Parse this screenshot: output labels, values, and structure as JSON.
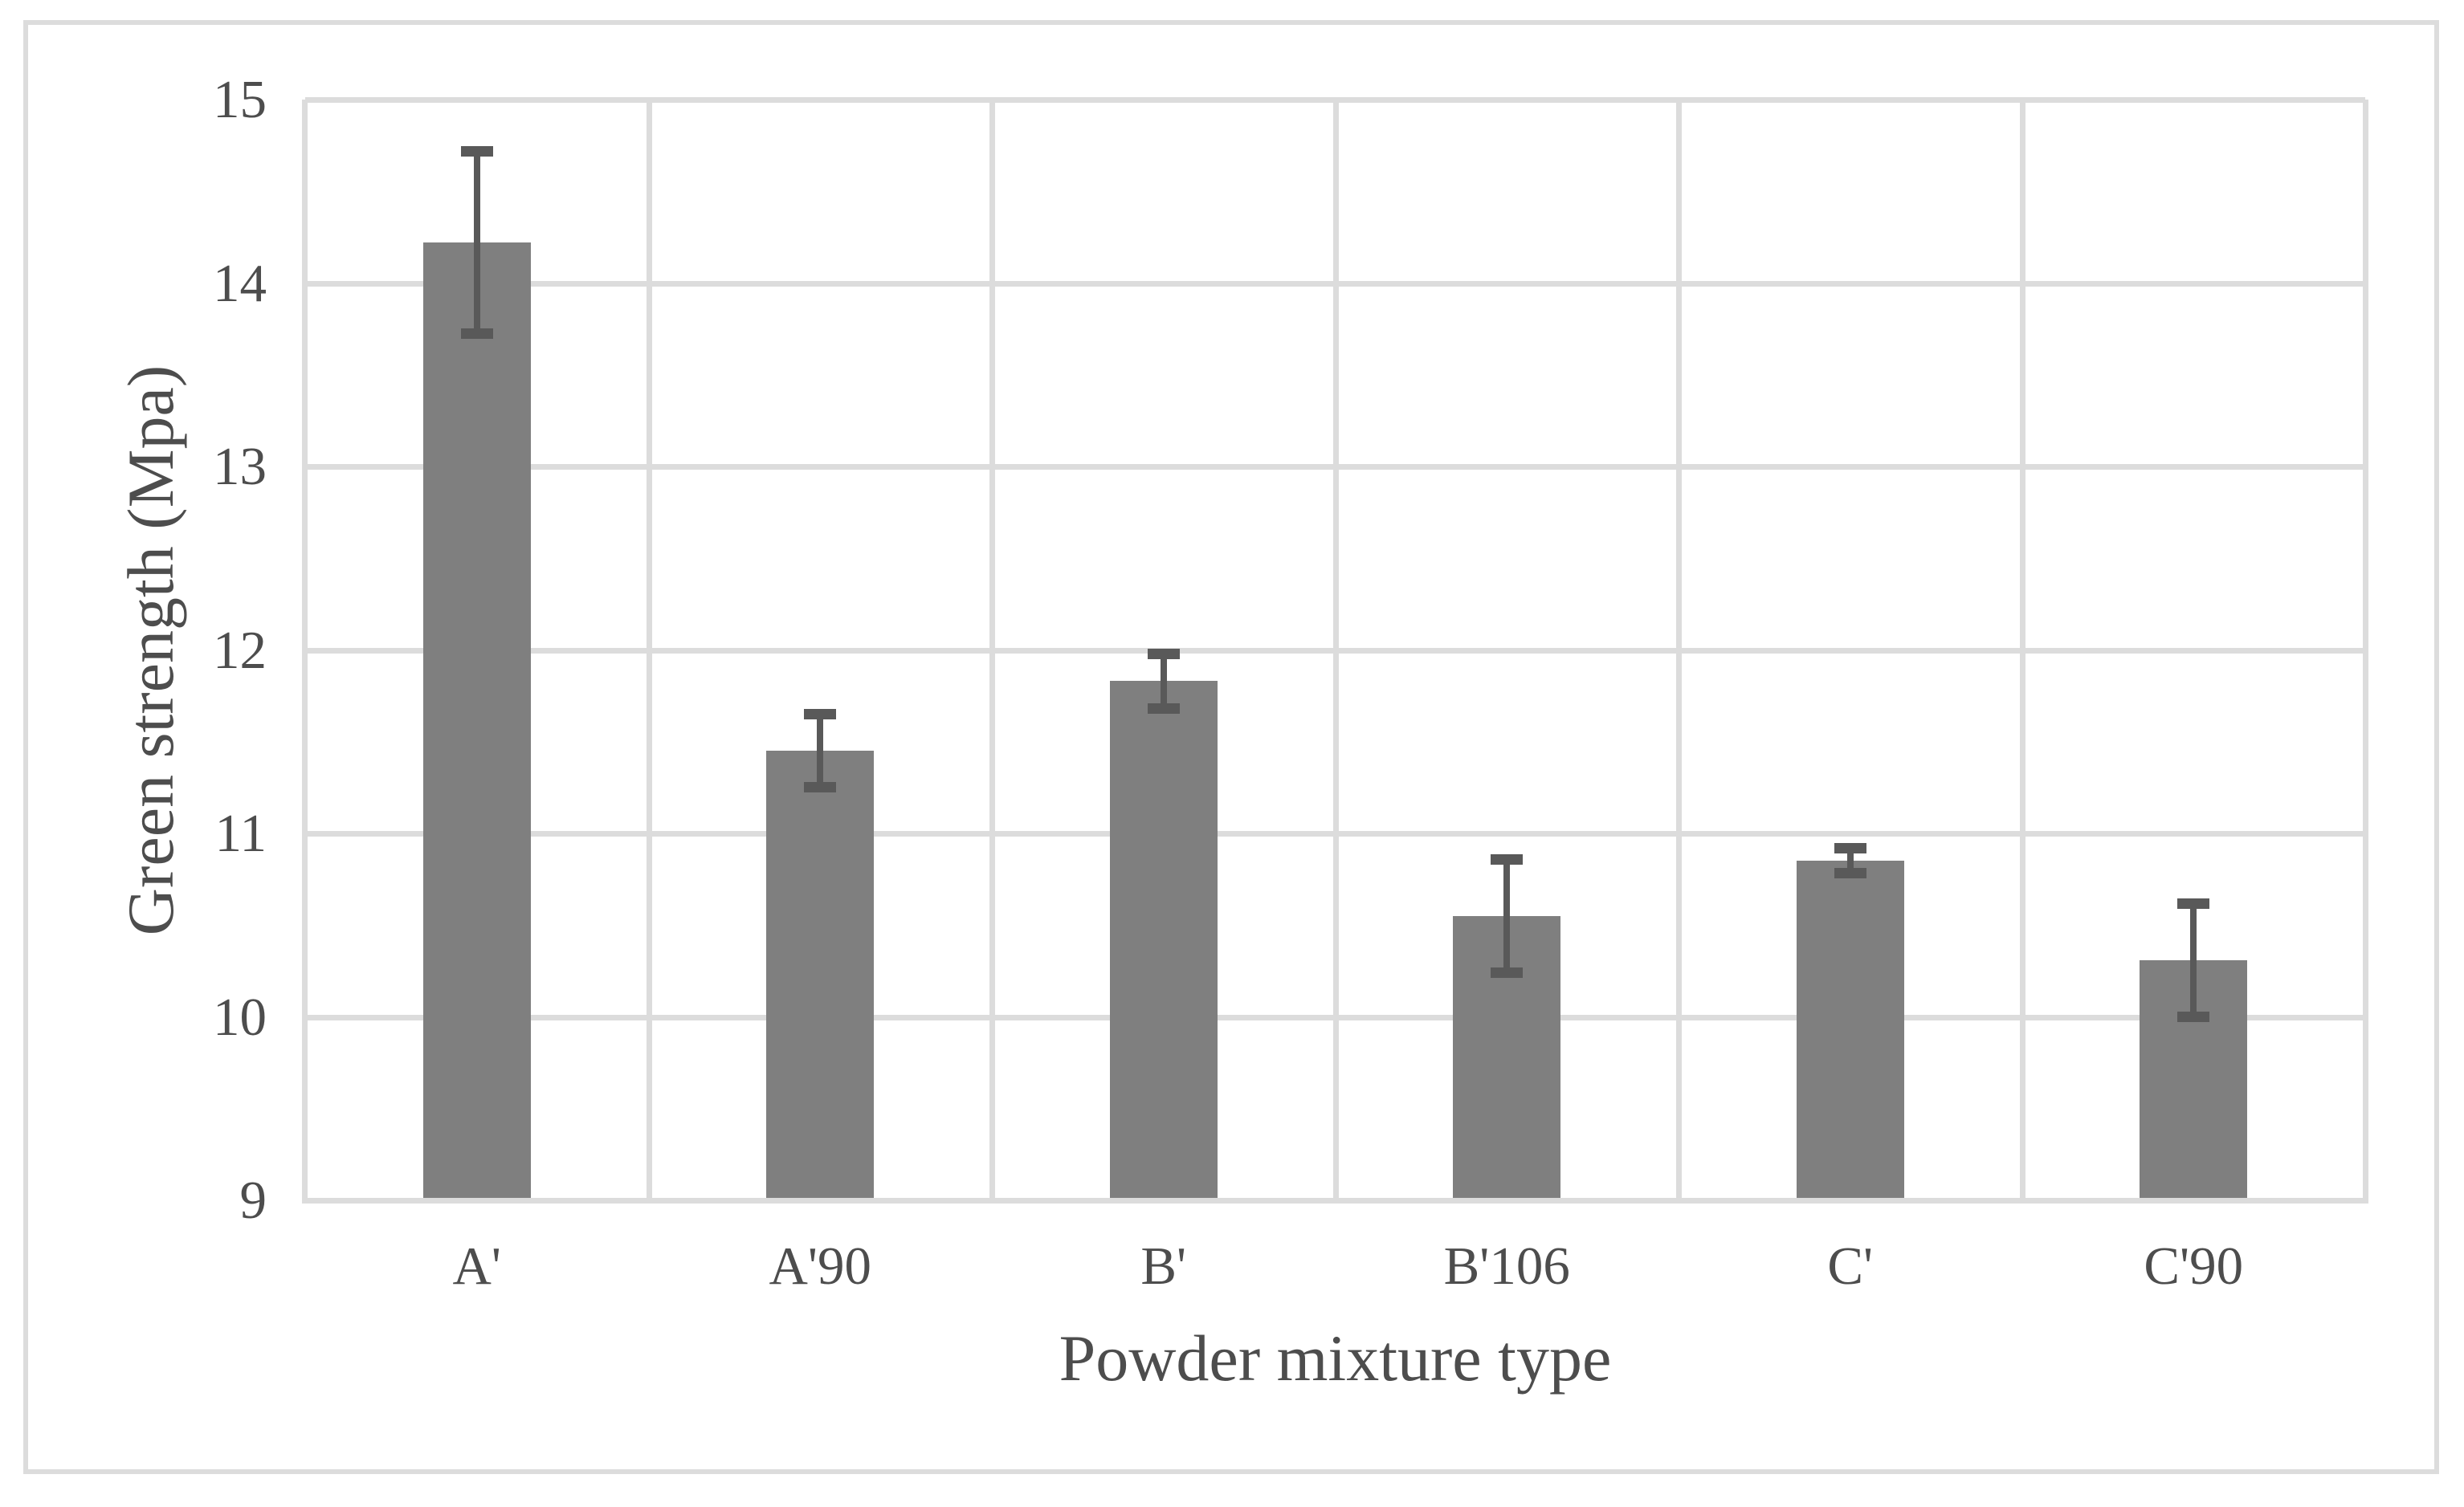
{
  "chart_data": {
    "type": "bar",
    "title": "",
    "categories": [
      "A'",
      "A'90",
      "B'",
      "B'106",
      "C'",
      "C'90"
    ],
    "series": [
      {
        "name": "Green strength",
        "values": [
          14.22,
          11.45,
          11.83,
          10.55,
          10.85,
          10.31
        ],
        "error_bars": [
          0.5,
          0.2,
          0.15,
          0.31,
          0.07,
          0.31
        ]
      }
    ],
    "values": [
      14.22,
      11.45,
      11.83,
      10.55,
      10.85,
      10.31
    ],
    "error_bars": [
      0.5,
      0.2,
      0.15,
      0.31,
      0.07,
      0.31
    ],
    "xlabel": "Powder mixture type",
    "ylabel": "Green strength (Mpa)",
    "ylim": [
      9,
      15
    ],
    "yticks": [
      9,
      10,
      11,
      12,
      13,
      14,
      15
    ],
    "grid": true,
    "legend": "none",
    "colors": {
      "bar_fill": "#7F7F7F",
      "error_bar": "#595959",
      "gridline": "#DCDCDC",
      "axis_line": "#DCDCDC",
      "text": "#4D4D4D",
      "background": "#FFFFFF",
      "figure_border": "#DCDCDC"
    }
  }
}
